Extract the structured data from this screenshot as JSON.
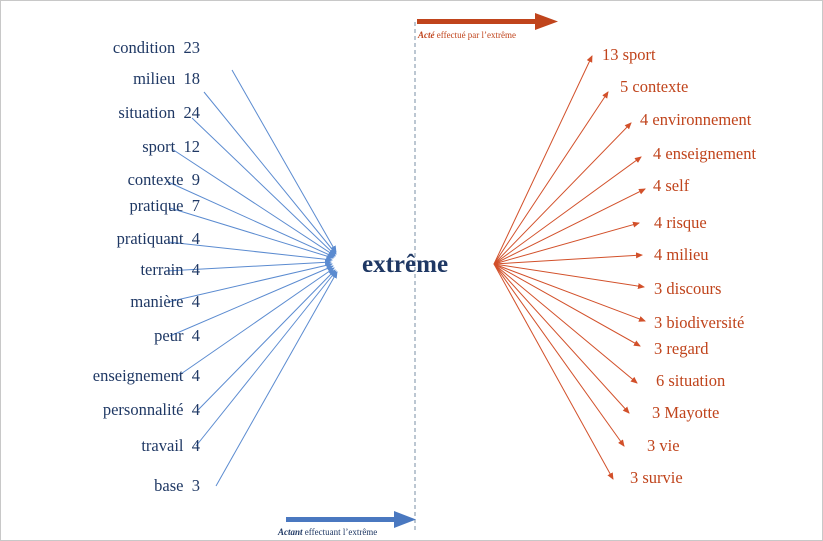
{
  "center": "extrême",
  "top_caption": {
    "lead": "Acté",
    "rest": " effectué par l’extrême"
  },
  "bottom_caption": {
    "lead": "Actant",
    "rest": " effectuant l’extrême"
  },
  "left_terms": [
    {
      "word": "condition",
      "count": "23"
    },
    {
      "word": "milieu",
      "count": "18"
    },
    {
      "word": "situation",
      "count": "24"
    },
    {
      "word": "sport",
      "count": "12"
    },
    {
      "word": "contexte",
      "count": "9"
    },
    {
      "word": "pratique",
      "count": "7"
    },
    {
      "word": "pratiquant",
      "count": "4"
    },
    {
      "word": "terrain",
      "count": "4"
    },
    {
      "word": "manière",
      "count": "4"
    },
    {
      "word": "peur",
      "count": "4"
    },
    {
      "word": "enseignement",
      "count": "4"
    },
    {
      "word": "personnalité",
      "count": "4"
    },
    {
      "word": "travail",
      "count": "4"
    },
    {
      "word": "base",
      "count": "3"
    }
  ],
  "right_terms": [
    {
      "count": "13",
      "word": "sport"
    },
    {
      "count": "5",
      "word": "contexte"
    },
    {
      "count": "4",
      "word": "environnement"
    },
    {
      "count": "4",
      "word": "enseignement"
    },
    {
      "count": "4",
      "word": "self"
    },
    {
      "count": "4",
      "word": "risque"
    },
    {
      "count": "4",
      "word": "milieu"
    },
    {
      "count": "3",
      "word": "discours"
    },
    {
      "count": "3",
      "word": "biodiversité"
    },
    {
      "count": "3",
      "word": "regard"
    },
    {
      "count": "6",
      "word": "situation"
    },
    {
      "count": "3",
      "word": "Mayotte"
    },
    {
      "count": "3",
      "word": "vie"
    },
    {
      "count": "3",
      "word": "survie"
    }
  ],
  "colors": {
    "left": "#1f3864",
    "left_arrow": "#5b8bd0",
    "right": "#c0441c",
    "right_arrow": "#d2502a",
    "divider": "#7a8fa6"
  }
}
